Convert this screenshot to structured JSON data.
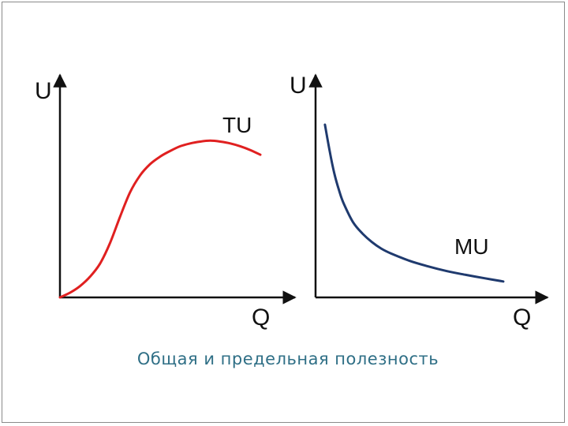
{
  "caption": "Общая и предельная полезность",
  "colors": {
    "axis": "#111111",
    "tu_curve": "#e02020",
    "mu_curve": "#1f3a6e",
    "caption": "#2f6f86"
  },
  "chart_data": [
    {
      "type": "line",
      "title": "",
      "xlabel": "Q",
      "ylabel": "U",
      "grid": false,
      "series": [
        {
          "name": "TU",
          "color": "#e02020",
          "x": [
            0,
            0.5,
            1,
            1.5,
            2,
            2.5,
            3,
            3.5,
            4,
            4.5,
            5,
            5.5,
            6,
            6.5,
            7,
            7.5,
            8,
            8.5,
            9,
            9.5,
            10
          ],
          "y": [
            0,
            0.25,
            0.6,
            1.1,
            1.8,
            2.9,
            4.3,
            5.6,
            6.5,
            7.1,
            7.5,
            7.8,
            8.05,
            8.2,
            8.3,
            8.35,
            8.3,
            8.2,
            8.05,
            7.85,
            7.6
          ]
        }
      ]
    },
    {
      "type": "line",
      "title": "",
      "xlabel": "Q",
      "ylabel": "U",
      "grid": false,
      "series": [
        {
          "name": "MU",
          "color": "#1f3a6e",
          "x": [
            0.5,
            0.75,
            1,
            1.25,
            1.5,
            2,
            2.5,
            3,
            3.5,
            4,
            5,
            6,
            7,
            8,
            9,
            10
          ],
          "y": [
            9.2,
            7.8,
            6.6,
            5.7,
            5.0,
            4.0,
            3.4,
            2.95,
            2.6,
            2.35,
            1.95,
            1.65,
            1.4,
            1.2,
            1.02,
            0.85
          ]
        }
      ]
    }
  ]
}
